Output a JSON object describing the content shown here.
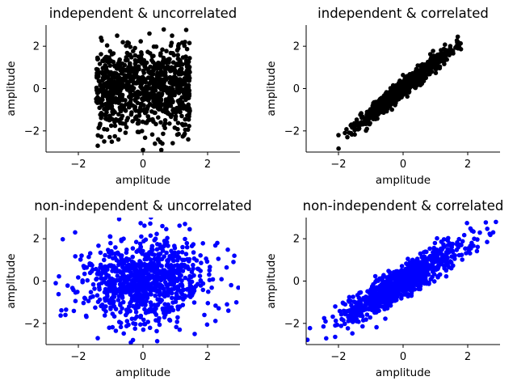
{
  "chart_data": [
    {
      "type": "scatter",
      "title": "independent & uncorrelated",
      "xlabel": "amplitude",
      "ylabel": "amplitude",
      "xlim": [
        -3,
        3
      ],
      "ylim": [
        -3,
        3
      ],
      "xticks": [
        -2,
        0,
        2
      ],
      "yticks": [
        -2,
        0,
        2
      ],
      "xtick_labels": [
        "−2",
        "0",
        "2"
      ],
      "ytick_labels": [
        "−2",
        "0",
        "2"
      ],
      "grid": false,
      "color": "#000000",
      "distribution": "x uniform in [-1.45, 1.45], y normal (sd ≈ 1), independent",
      "points": [
        [
          -1.3,
          2.4
        ],
        [
          -0.8,
          2.5
        ],
        [
          0.2,
          2.6
        ],
        [
          0.9,
          2.5
        ],
        [
          1.3,
          2.2
        ],
        [
          -1.4,
          -2.7
        ],
        [
          -1.2,
          -2.5
        ],
        [
          0.0,
          -2.9
        ],
        [
          0.6,
          -2.6
        ],
        [
          1.4,
          -2.4
        ],
        [
          -0.4,
          1.6
        ],
        [
          0.5,
          1.2
        ],
        [
          -0.9,
          0.7
        ],
        [
          1.1,
          0.3
        ],
        [
          -1.0,
          -0.4
        ],
        [
          0.3,
          -0.8
        ],
        [
          -0.5,
          -1.5
        ],
        [
          1.2,
          -1.3
        ],
        [
          0.1,
          0.1
        ],
        [
          -1.4,
          0.9
        ],
        [
          1.4,
          1.0
        ],
        [
          -0.2,
          -0.2
        ],
        [
          0.7,
          0.6
        ],
        [
          -0.7,
          -1.0
        ]
      ]
    },
    {
      "type": "scatter",
      "title": "independent & correlated",
      "xlabel": "amplitude",
      "ylabel": "amplitude",
      "xlim": [
        -3,
        3
      ],
      "ylim": [
        -3,
        3
      ],
      "xticks": [
        -2,
        0,
        2
      ],
      "yticks": [
        -2,
        0,
        2
      ],
      "xtick_labels": [
        "−2",
        "0",
        "2"
      ],
      "ytick_labels": [
        "−2",
        "0",
        "2"
      ],
      "grid": false,
      "color": "#000000",
      "distribution": "tight linear relationship, y ≈ 1.2x",
      "points": [
        [
          -2.0,
          -2.2
        ],
        [
          -1.8,
          -2.1
        ],
        [
          -1.6,
          -1.7
        ],
        [
          -1.3,
          -1.2
        ],
        [
          -1.0,
          -1.3
        ],
        [
          -0.7,
          -0.6
        ],
        [
          -0.4,
          -0.5
        ],
        [
          0.0,
          0.0
        ],
        [
          0.3,
          0.4
        ],
        [
          0.6,
          0.9
        ],
        [
          0.9,
          1.0
        ],
        [
          1.2,
          1.4
        ],
        [
          1.5,
          1.7
        ],
        [
          1.7,
          1.9
        ],
        [
          0.8,
          1.2
        ],
        [
          -0.3,
          -0.6
        ],
        [
          0.5,
          0.3
        ],
        [
          1.0,
          1.5
        ]
      ]
    },
    {
      "type": "scatter",
      "title": "non-independent & uncorrelated",
      "xlabel": "amplitude",
      "ylabel": "amplitude",
      "xlim": [
        -3,
        3
      ],
      "ylim": [
        -3,
        3
      ],
      "xticks": [
        -2,
        0,
        2
      ],
      "yticks": [
        -2,
        0,
        2
      ],
      "xtick_labels": [
        "−2",
        "0",
        "2"
      ],
      "ytick_labels": [
        "−2",
        "0",
        "2"
      ],
      "grid": false,
      "color": "#0000ff",
      "distribution": "circular cloud, x and y normal (sd ≈ 1)",
      "points": [
        [
          -2.1,
          2.3
        ],
        [
          -2.7,
          -0.1
        ],
        [
          -2.4,
          -1.6
        ],
        [
          0.6,
          2.6
        ],
        [
          1.3,
          2.7
        ],
        [
          2.3,
          1.8
        ],
        [
          2.8,
          0.9
        ],
        [
          2.6,
          -1.1
        ],
        [
          1.6,
          -2.5
        ],
        [
          -1.4,
          -2.7
        ],
        [
          -0.6,
          2.0
        ],
        [
          0.9,
          1.1
        ],
        [
          -1.2,
          0.6
        ],
        [
          1.5,
          0.2
        ],
        [
          -1.0,
          -0.9
        ],
        [
          0.4,
          -1.3
        ],
        [
          0.0,
          0.0
        ],
        [
          -0.3,
          -2.0
        ],
        [
          1.9,
          -1.6
        ],
        [
          -1.9,
          1.2
        ]
      ]
    },
    {
      "type": "scatter",
      "title": "non-independent & correlated",
      "xlabel": "amplitude",
      "ylabel": "amplitude",
      "xlim": [
        -3,
        3
      ],
      "ylim": [
        -3,
        3
      ],
      "xticks": [
        -2,
        0,
        2
      ],
      "yticks": [
        -2,
        0,
        2
      ],
      "xtick_labels": [
        "−2",
        "0",
        "2"
      ],
      "ytick_labels": [
        "−2",
        "0",
        "2"
      ],
      "grid": false,
      "color": "#0000ff",
      "distribution": "elongated elliptical cloud along y ≈ x",
      "points": [
        [
          -2.1,
          -2.1
        ],
        [
          -1.9,
          -1.8
        ],
        [
          -1.5,
          -1.7
        ],
        [
          -1.1,
          -0.8
        ],
        [
          -0.8,
          -1.1
        ],
        [
          -0.5,
          -0.3
        ],
        [
          -0.2,
          -0.6
        ],
        [
          0.0,
          0.0
        ],
        [
          0.3,
          0.6
        ],
        [
          0.6,
          0.3
        ],
        [
          0.9,
          1.1
        ],
        [
          1.2,
          0.8
        ],
        [
          1.5,
          1.6
        ],
        [
          1.8,
          1.7
        ],
        [
          2.2,
          2.0
        ],
        [
          -0.9,
          -0.5
        ],
        [
          0.4,
          0.9
        ],
        [
          1.0,
          1.4
        ]
      ]
    }
  ]
}
